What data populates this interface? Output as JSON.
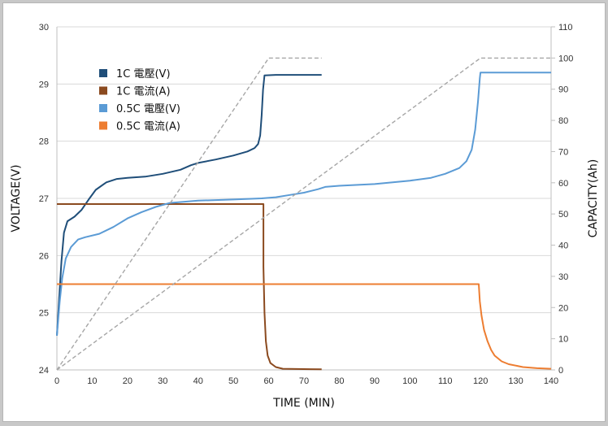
{
  "chart_data": {
    "type": "line",
    "title": "",
    "xlabel": "TIME (MIN)",
    "ylabel": "VOLTAGE(V)",
    "y2label": "CAPACITY(Ah)",
    "xlim": [
      0,
      140
    ],
    "ylim": [
      24,
      30
    ],
    "y2lim": [
      0,
      110
    ],
    "x_ticks": [
      0,
      10,
      20,
      30,
      40,
      50,
      60,
      70,
      80,
      90,
      100,
      110,
      120,
      130,
      140
    ],
    "y_ticks": [
      24,
      25,
      26,
      27,
      28,
      29,
      30
    ],
    "y2_ticks": [
      0,
      10,
      20,
      30,
      40,
      50,
      60,
      70,
      80,
      90,
      100,
      110
    ],
    "grid": "horizontal",
    "legend_position": "top-left",
    "series": [
      {
        "name": "1C 電壓(V)",
        "axis": "left",
        "color": "#1f4e79",
        "style": "solid",
        "points": [
          [
            0,
            24.6
          ],
          [
            0.7,
            25.3
          ],
          [
            1.3,
            25.9
          ],
          [
            2,
            26.4
          ],
          [
            3,
            26.6
          ],
          [
            5,
            26.68
          ],
          [
            7,
            26.8
          ],
          [
            9,
            26.98
          ],
          [
            11,
            27.15
          ],
          [
            14,
            27.28
          ],
          [
            17,
            27.34
          ],
          [
            20,
            27.36
          ],
          [
            25,
            27.38
          ],
          [
            30,
            27.43
          ],
          [
            35,
            27.5
          ],
          [
            38,
            27.58
          ],
          [
            40,
            27.62
          ],
          [
            45,
            27.68
          ],
          [
            50,
            27.75
          ],
          [
            54,
            27.82
          ],
          [
            56,
            27.88
          ],
          [
            57,
            27.95
          ],
          [
            57.6,
            28.1
          ],
          [
            58,
            28.45
          ],
          [
            58.4,
            28.9
          ],
          [
            58.8,
            29.15
          ],
          [
            62,
            29.16
          ],
          [
            75,
            29.16
          ]
        ]
      },
      {
        "name": "1C 電流(A)",
        "axis": "left",
        "color": "#8b4a1f",
        "style": "solid",
        "points": [
          [
            0,
            26.9
          ],
          [
            58.5,
            26.9
          ],
          [
            58.5,
            25.8
          ],
          [
            58.8,
            25.0
          ],
          [
            59.2,
            24.5
          ],
          [
            59.7,
            24.25
          ],
          [
            60.5,
            24.12
          ],
          [
            62,
            24.05
          ],
          [
            64,
            24.02
          ],
          [
            75,
            24.01
          ]
        ]
      },
      {
        "name": "0.5C 電壓(V)",
        "axis": "left",
        "color": "#5b9bd5",
        "style": "solid",
        "points": [
          [
            0,
            24.6
          ],
          [
            0.8,
            25.2
          ],
          [
            1.5,
            25.6
          ],
          [
            2.5,
            25.95
          ],
          [
            4,
            26.15
          ],
          [
            6,
            26.28
          ],
          [
            8,
            26.32
          ],
          [
            12,
            26.38
          ],
          [
            16,
            26.5
          ],
          [
            20,
            26.65
          ],
          [
            24,
            26.76
          ],
          [
            28,
            26.85
          ],
          [
            32,
            26.92
          ],
          [
            40,
            26.96
          ],
          [
            50,
            26.98
          ],
          [
            58,
            27.0
          ],
          [
            62,
            27.02
          ],
          [
            66,
            27.06
          ],
          [
            70,
            27.1
          ],
          [
            74,
            27.16
          ],
          [
            76,
            27.2
          ],
          [
            80,
            27.22
          ],
          [
            90,
            27.25
          ],
          [
            100,
            27.31
          ],
          [
            106,
            27.36
          ],
          [
            110,
            27.43
          ],
          [
            114,
            27.53
          ],
          [
            116,
            27.65
          ],
          [
            117.5,
            27.85
          ],
          [
            118.5,
            28.2
          ],
          [
            119.3,
            28.7
          ],
          [
            119.8,
            29.1
          ],
          [
            120,
            29.2
          ],
          [
            130,
            29.2
          ],
          [
            140,
            29.2
          ]
        ]
      },
      {
        "name": "0.5C 電流(A)",
        "axis": "left",
        "color": "#ed7d31",
        "style": "solid",
        "points": [
          [
            0,
            25.5
          ],
          [
            119.5,
            25.5
          ],
          [
            119.8,
            25.2
          ],
          [
            120.3,
            24.95
          ],
          [
            121,
            24.7
          ],
          [
            122,
            24.5
          ],
          [
            123,
            24.35
          ],
          [
            124,
            24.25
          ],
          [
            126,
            24.15
          ],
          [
            128,
            24.1
          ],
          [
            132,
            24.05
          ],
          [
            136,
            24.03
          ],
          [
            140,
            24.02
          ]
        ]
      },
      {
        "name": "",
        "axis": "right",
        "color": "#a6a6a6",
        "style": "dashed",
        "points": [
          [
            0,
            0
          ],
          [
            60,
            100
          ],
          [
            75,
            100
          ]
        ]
      },
      {
        "name": "",
        "axis": "right",
        "color": "#a6a6a6",
        "style": "dashed",
        "points": [
          [
            0,
            0
          ],
          [
            120,
            100
          ],
          [
            140,
            100
          ]
        ]
      }
    ]
  }
}
